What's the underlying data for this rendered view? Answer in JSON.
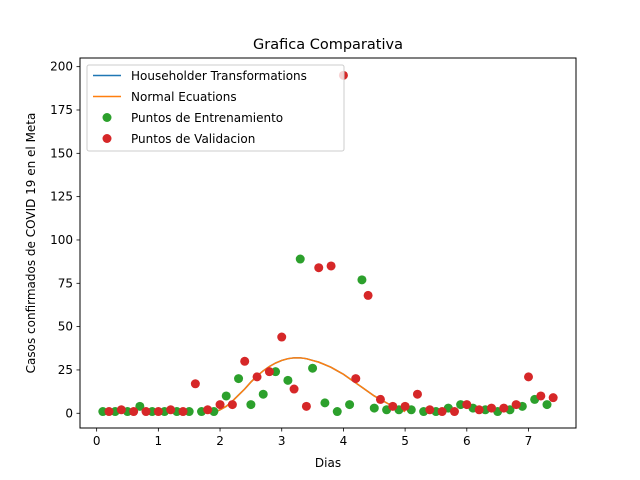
{
  "chart_data": {
    "type": "scatter",
    "title": "Grafica Comparativa",
    "xlabel": "Dias",
    "ylabel": "Casos confirmados de COVID 19 en el Meta",
    "xlim": [
      -0.27,
      7.77
    ],
    "ylim": [
      -8.5,
      205
    ],
    "xticks": [
      0,
      1,
      2,
      3,
      4,
      5,
      6,
      7
    ],
    "yticks": [
      0,
      25,
      50,
      75,
      100,
      125,
      150,
      175,
      200
    ],
    "grid": false,
    "legend_position": "top-left",
    "legend": [
      {
        "label": "Householder Transformations",
        "kind": "line",
        "color": "#1f77b4"
      },
      {
        "label": "Normal Ecuations",
        "kind": "line",
        "color": "#ff7f0e"
      },
      {
        "label": "Puntos de Entrenamiento",
        "kind": "marker",
        "color": "#2ca02c"
      },
      {
        "label": "Puntos de Validacion",
        "kind": "marker",
        "color": "#d62728"
      }
    ],
    "series": [
      {
        "name": "Householder Transformations",
        "type": "line",
        "color": "#1f77b4",
        "x": [
          1.9,
          2.0,
          2.1,
          2.2,
          2.3,
          2.4,
          2.5,
          2.6,
          2.7,
          2.8,
          2.9,
          3.0,
          3.1,
          3.2,
          3.3,
          3.4,
          3.5,
          3.6,
          3.7,
          3.8,
          3.9,
          4.0,
          4.1,
          4.2,
          4.3,
          4.4,
          4.5,
          4.6,
          4.7,
          4.8,
          4.9,
          5.0
        ],
        "y": [
          0.5,
          2.0,
          4.0,
          7.0,
          10.5,
          14.0,
          18.0,
          21.5,
          24.5,
          27.0,
          29.0,
          30.5,
          31.5,
          32.0,
          32.0,
          31.5,
          30.5,
          29.5,
          28.0,
          26.5,
          24.5,
          22.5,
          20.0,
          17.5,
          15.0,
          12.5,
          10.0,
          8.0,
          6.0,
          4.0,
          2.5,
          1.0
        ]
      },
      {
        "name": "Normal Ecuations",
        "type": "line",
        "color": "#ff7f0e",
        "x": [
          1.9,
          2.0,
          2.1,
          2.2,
          2.3,
          2.4,
          2.5,
          2.6,
          2.7,
          2.8,
          2.9,
          3.0,
          3.1,
          3.2,
          3.3,
          3.4,
          3.5,
          3.6,
          3.7,
          3.8,
          3.9,
          4.0,
          4.1,
          4.2,
          4.3,
          4.4,
          4.5,
          4.6,
          4.7,
          4.8,
          4.9,
          5.0
        ],
        "y": [
          0.5,
          2.0,
          4.0,
          7.0,
          10.5,
          14.0,
          18.0,
          21.5,
          24.5,
          27.0,
          29.0,
          30.5,
          31.5,
          32.0,
          32.0,
          31.5,
          30.5,
          29.5,
          28.0,
          26.5,
          24.5,
          22.5,
          20.0,
          17.5,
          15.0,
          12.5,
          10.0,
          8.0,
          6.0,
          4.0,
          2.5,
          1.0
        ]
      },
      {
        "name": "Puntos de Entrenamiento",
        "type": "scatter",
        "color": "#2ca02c",
        "points": [
          [
            0.1,
            1
          ],
          [
            0.3,
            1
          ],
          [
            0.5,
            1
          ],
          [
            0.7,
            4
          ],
          [
            0.9,
            1
          ],
          [
            1.1,
            1
          ],
          [
            1.3,
            1
          ],
          [
            1.5,
            1
          ],
          [
            1.7,
            1
          ],
          [
            1.9,
            1
          ],
          [
            2.1,
            10
          ],
          [
            2.3,
            20
          ],
          [
            2.5,
            5
          ],
          [
            2.7,
            11
          ],
          [
            2.9,
            24
          ],
          [
            3.1,
            19
          ],
          [
            3.3,
            89
          ],
          [
            3.5,
            26
          ],
          [
            3.7,
            6
          ],
          [
            3.9,
            1
          ],
          [
            4.1,
            5
          ],
          [
            4.3,
            77
          ],
          [
            4.5,
            3
          ],
          [
            4.7,
            2
          ],
          [
            4.9,
            2
          ],
          [
            5.1,
            2
          ],
          [
            5.3,
            1
          ],
          [
            5.5,
            1
          ],
          [
            5.7,
            3
          ],
          [
            5.9,
            5
          ],
          [
            6.1,
            3
          ],
          [
            6.3,
            2
          ],
          [
            6.5,
            1
          ],
          [
            6.7,
            2
          ],
          [
            6.9,
            4
          ],
          [
            7.1,
            8
          ],
          [
            7.3,
            5
          ]
        ]
      },
      {
        "name": "Puntos de Validacion",
        "type": "scatter",
        "color": "#d62728",
        "points": [
          [
            0.2,
            1
          ],
          [
            0.4,
            2
          ],
          [
            0.6,
            1
          ],
          [
            0.8,
            1
          ],
          [
            1.0,
            1
          ],
          [
            1.2,
            2
          ],
          [
            1.4,
            1
          ],
          [
            1.6,
            17
          ],
          [
            1.8,
            2
          ],
          [
            2.0,
            5
          ],
          [
            2.2,
            5
          ],
          [
            2.4,
            30
          ],
          [
            2.6,
            21
          ],
          [
            2.8,
            24
          ],
          [
            3.0,
            44
          ],
          [
            3.2,
            14
          ],
          [
            3.4,
            4
          ],
          [
            3.6,
            84
          ],
          [
            3.8,
            85
          ],
          [
            4.0,
            195
          ],
          [
            4.2,
            20
          ],
          [
            4.4,
            68
          ],
          [
            4.6,
            8
          ],
          [
            4.8,
            4
          ],
          [
            5.0,
            4
          ],
          [
            5.2,
            11
          ],
          [
            5.4,
            2
          ],
          [
            5.6,
            1
          ],
          [
            5.8,
            1
          ],
          [
            6.0,
            5
          ],
          [
            6.2,
            2
          ],
          [
            6.4,
            3
          ],
          [
            6.6,
            3
          ],
          [
            6.8,
            5
          ],
          [
            7.0,
            21
          ],
          [
            7.2,
            10
          ],
          [
            7.4,
            9
          ]
        ]
      }
    ]
  }
}
